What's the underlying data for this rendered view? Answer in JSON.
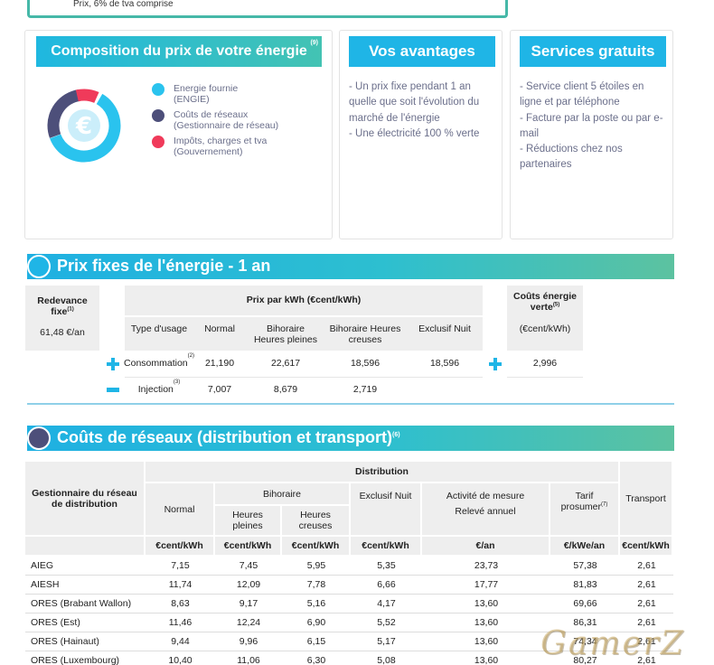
{
  "top_note": "Prix, 6% de tva comprise",
  "composition": {
    "title": "Composition du prix de votre énergie",
    "note_ref": "(9)",
    "euro": "€",
    "legend": [
      {
        "label": "Energie fournie",
        "sub": "(ENGIE)",
        "color": "#2ac3ee"
      },
      {
        "label": "Coûts de réseaux",
        "sub": "(Gestionnaire de réseau)",
        "color": "#4d4f7a"
      },
      {
        "label": "Impôts, charges et tva",
        "sub": "(Gouvernement)",
        "color": "#f03a5a"
      }
    ]
  },
  "avantages": {
    "title": "Vos avantages",
    "items": [
      "- Un prix fixe pendant 1 an quelle que soit l'évolution du marché de l'énergie",
      "- Une électricité 100 % verte"
    ]
  },
  "services": {
    "title": "Services gratuits",
    "items": [
      "- Service client 5 étoiles en ligne et par téléphone",
      "- Facture par la poste ou par e-mail",
      "- Réductions chez nos partenaires"
    ]
  },
  "prix_fixes": {
    "title": "Prix fixes de l'énergie - 1 an",
    "redevance_label": "Redevance fixe",
    "redevance_ref": "(1)",
    "redevance_value": "61,48 €/an",
    "prix_kwh_header": "Prix par kWh (€cent/kWh)",
    "cols": [
      "Type d'usage",
      "Normal",
      "Bihoraire Heures pleines",
      "Bihoraire Heures creuses",
      "Exclusif Nuit"
    ],
    "verte_label": "Coûts énergie verte",
    "verte_ref": "(5)",
    "verte_unit": "(€cent/kWh)",
    "rows": [
      {
        "label": "Consommation",
        "ref": "(2)",
        "normal": "21,190",
        "hp": "22,617",
        "hc": "18,596",
        "nuit": "18,596",
        "verte": "2,996"
      },
      {
        "label": "Injection",
        "ref": "(3)",
        "normal": "7,007",
        "hp": "8,679",
        "hc": "2,719",
        "nuit": "",
        "verte": ""
      }
    ]
  },
  "reseaux": {
    "title": "Coûts de réseaux (distribution et transport)",
    "note_ref": "(6)",
    "gestionnaire_header": "Gestionnaire du réseau de distribution",
    "distribution_header": "Distribution",
    "normal_header": "Normal",
    "bihoraire_header": "Bihoraire",
    "hp_header": "Heures pleines",
    "hc_header": "Heures creuses",
    "nuit_header": "Exclusif Nuit",
    "mesure_header": "Activité de mesure",
    "mesure_sub": "Relevé annuel",
    "prosumer_header": "Tarif prosumer",
    "prosumer_ref": "(7)",
    "transport_header": "Transport",
    "units": [
      "€cent/kWh",
      "€cent/kWh",
      "€cent/kWh",
      "€cent/kWh",
      "€/an",
      "€/kWe/an",
      "€cent/kWh"
    ],
    "rows": [
      [
        "AIEG",
        "7,15",
        "7,45",
        "5,95",
        "5,35",
        "23,73",
        "57,38",
        "2,61"
      ],
      [
        "AIESH",
        "11,74",
        "12,09",
        "7,78",
        "6,66",
        "17,77",
        "81,83",
        "2,61"
      ],
      [
        "ORES (Brabant Wallon)",
        "8,63",
        "9,17",
        "5,16",
        "4,17",
        "13,60",
        "69,66",
        "2,61"
      ],
      [
        "ORES (Est)",
        "11,46",
        "12,24",
        "6,90",
        "5,52",
        "13,60",
        "86,31",
        "2,61"
      ],
      [
        "ORES (Hainaut)",
        "9,44",
        "9,96",
        "6,15",
        "5,17",
        "13,60",
        "74,34",
        "2,61"
      ],
      [
        "ORES (Luxembourg)",
        "10,40",
        "11,06",
        "6,30",
        "5,08",
        "13,60",
        "80,27",
        "2,61"
      ]
    ]
  },
  "watermark": "GamerZ"
}
